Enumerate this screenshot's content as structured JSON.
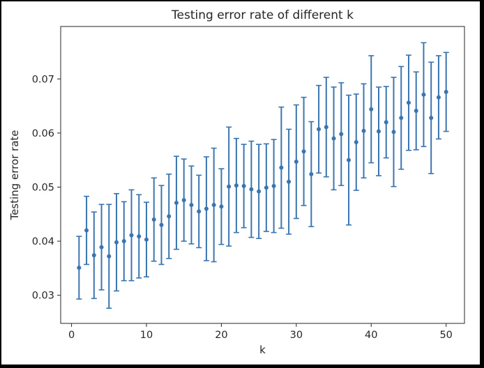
{
  "chart_data": {
    "type": "scatter",
    "title": "Testing error rate of different k",
    "xlabel": "k",
    "ylabel": "Testing error rate",
    "xlim": [
      -1.45,
      52.45
    ],
    "ylim": [
      0.0248,
      0.0797
    ],
    "xticks": [
      0,
      10,
      20,
      30,
      40,
      50
    ],
    "yticks": [
      0.03,
      0.04,
      0.05,
      0.06,
      0.07
    ],
    "ytick_labels": [
      "0.03",
      "0.04",
      "0.05",
      "0.06",
      "0.07"
    ],
    "grid": false,
    "legend": false,
    "color": "#3a75b0",
    "series": [
      {
        "x": [
          1,
          2,
          3,
          4,
          5,
          6,
          7,
          8,
          9,
          10,
          11,
          12,
          13,
          14,
          15,
          16,
          17,
          18,
          19,
          20,
          21,
          22,
          23,
          24,
          25,
          26,
          27,
          28,
          29,
          30,
          31,
          32,
          33,
          34,
          35,
          36,
          37,
          38,
          39,
          40,
          41,
          42,
          43,
          44,
          45,
          46,
          47,
          48,
          49,
          50
        ],
        "y": [
          0.0351,
          0.042,
          0.0374,
          0.0389,
          0.0372,
          0.0398,
          0.04,
          0.0411,
          0.0409,
          0.0403,
          0.044,
          0.043,
          0.0446,
          0.0471,
          0.0476,
          0.0467,
          0.0455,
          0.046,
          0.0467,
          0.0464,
          0.0501,
          0.0503,
          0.0502,
          0.0496,
          0.0492,
          0.0499,
          0.0502,
          0.0536,
          0.051,
          0.0547,
          0.0566,
          0.0524,
          0.0607,
          0.0611,
          0.059,
          0.0598,
          0.055,
          0.0583,
          0.0604,
          0.0644,
          0.0603,
          0.062,
          0.0602,
          0.0628,
          0.0656,
          0.0641,
          0.0671,
          0.0628,
          0.0666,
          0.0676
        ],
        "err": [
          0.0058,
          0.0063,
          0.008,
          0.0079,
          0.0096,
          0.009,
          0.0073,
          0.0084,
          0.0077,
          0.0069,
          0.0077,
          0.0073,
          0.0078,
          0.0086,
          0.0076,
          0.0072,
          0.0067,
          0.0096,
          0.0105,
          0.007,
          0.011,
          0.0087,
          0.0077,
          0.0089,
          0.0087,
          0.0081,
          0.0086,
          0.0112,
          0.0097,
          0.0105,
          0.01,
          0.0097,
          0.0081,
          0.0092,
          0.0095,
          0.0095,
          0.012,
          0.0089,
          0.0087,
          0.0099,
          0.0082,
          0.0066,
          0.0101,
          0.0095,
          0.0088,
          0.0072,
          0.0096,
          0.0103,
          0.0077,
          0.0073
        ]
      }
    ]
  }
}
